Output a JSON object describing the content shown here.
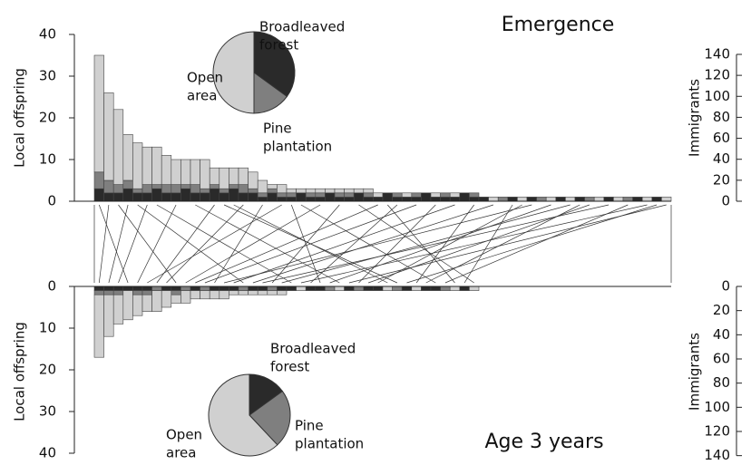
{
  "chart_data": [
    {
      "type": "bar",
      "stacked": true,
      "inverted": false,
      "title": "Emergence",
      "ylabel": "Local offspring",
      "y2label": "Immigrants",
      "ylim": [
        0,
        40
      ],
      "yticks": [
        0,
        10,
        20,
        30,
        40
      ],
      "y2lim": [
        0,
        159
      ],
      "y2ticks": [
        0,
        20,
        40,
        60,
        80,
        100,
        120,
        140
      ],
      "series": [
        {
          "name": "Broadleaved forest",
          "color": "#2a2a2a",
          "values": [
            3,
            2,
            2,
            3,
            2,
            2,
            3,
            2,
            2,
            3,
            2,
            2,
            3,
            2,
            3,
            2,
            2,
            1,
            2,
            1,
            1,
            2,
            1,
            1,
            2,
            1,
            1,
            2,
            1,
            1,
            2,
            1,
            1,
            1,
            2,
            1,
            1,
            1,
            2,
            1,
            1,
            0,
            0,
            1,
            0,
            1,
            0,
            0,
            1,
            0,
            1,
            0,
            0,
            1,
            0,
            0,
            1,
            0,
            1,
            0
          ]
        },
        {
          "name": "Pine plantation",
          "color": "#7f7f7f",
          "values": [
            4,
            3,
            2,
            2,
            1,
            2,
            1,
            2,
            2,
            1,
            2,
            1,
            1,
            1,
            1,
            2,
            1,
            1,
            1,
            1,
            1,
            0,
            1,
            1,
            0,
            1,
            1,
            0,
            1,
            0,
            0,
            1,
            0,
            1,
            0,
            0,
            1,
            0,
            0,
            1,
            0,
            0,
            1,
            0,
            0,
            0,
            1,
            0,
            0,
            0,
            0,
            1,
            0,
            0,
            0,
            1,
            0,
            0,
            0,
            0
          ]
        },
        {
          "name": "Open area",
          "color": "#d0d0d0",
          "values": [
            28,
            21,
            18,
            11,
            11,
            9,
            9,
            7,
            6,
            6,
            6,
            7,
            4,
            5,
            4,
            4,
            4,
            3,
            1,
            2,
            1,
            1,
            1,
            1,
            1,
            1,
            1,
            1,
            1,
            1,
            0,
            0,
            1,
            0,
            0,
            1,
            0,
            1,
            0,
            0,
            0,
            1,
            0,
            0,
            1,
            0,
            0,
            1,
            0,
            1,
            0,
            0,
            1,
            0,
            1,
            0,
            0,
            1,
            0,
            1
          ]
        }
      ]
    },
    {
      "type": "bar",
      "stacked": true,
      "inverted": true,
      "title": "Age 3 years",
      "ylabel": "Local offspring",
      "y2label": "Immigrants",
      "ylim": [
        0,
        40
      ],
      "yticks": [
        0,
        10,
        20,
        30,
        40
      ],
      "y2lim": [
        0,
        138
      ],
      "y2ticks": [
        0,
        20,
        40,
        60,
        80,
        100,
        120,
        140
      ],
      "series": [
        {
          "name": "Broadleaved forest",
          "color": "#2a2a2a",
          "values": [
            1,
            1,
            1,
            1,
            1,
            1,
            0,
            1,
            1,
            0,
            1,
            0,
            1,
            1,
            1,
            0,
            1,
            1,
            0,
            1,
            1,
            0,
            1,
            1,
            0,
            0,
            1,
            0,
            1,
            1,
            0,
            0,
            1,
            0,
            1,
            1,
            0,
            0,
            1,
            0
          ]
        },
        {
          "name": "Pine plantation",
          "color": "#7f7f7f",
          "values": [
            1,
            1,
            1,
            0,
            1,
            1,
            1,
            0,
            1,
            1,
            0,
            1,
            0,
            0,
            0,
            1,
            0,
            0,
            1,
            0,
            0,
            0,
            0,
            0,
            1,
            0,
            0,
            1,
            0,
            0,
            0,
            1,
            0,
            0,
            0,
            0,
            1,
            0,
            0,
            0
          ]
        },
        {
          "name": "Open area",
          "color": "#d0d0d0",
          "values": [
            15,
            10,
            7,
            7,
            5,
            4,
            5,
            4,
            2,
            3,
            2,
            2,
            2,
            2,
            1,
            1,
            1,
            1,
            1,
            1,
            0,
            1,
            0,
            0,
            0,
            1,
            0,
            0,
            0,
            0,
            1,
            0,
            0,
            1,
            0,
            0,
            0,
            1,
            0,
            1
          ]
        }
      ]
    },
    {
      "type": "pie",
      "labels": [
        [
          "Broadleaved",
          "forest"
        ],
        [
          "Pine",
          "plantation"
        ],
        [
          "Open",
          "area"
        ]
      ],
      "values": [
        35,
        15,
        50
      ],
      "colors": [
        "#2a2a2a",
        "#7f7f7f",
        "#d0d0d0"
      ]
    },
    {
      "type": "pie",
      "labels": [
        [
          "Broadleaved",
          "forest"
        ],
        [
          "Pine",
          "plantation"
        ],
        [
          "Open",
          "area"
        ]
      ],
      "values": [
        15,
        23,
        62
      ],
      "colors": [
        "#2a2a2a",
        "#7f7f7f",
        "#d0d0d0"
      ]
    }
  ],
  "links": {
    "from": [
      0,
      1,
      2,
      3,
      4,
      5,
      6,
      8,
      10,
      12,
      14,
      15,
      17,
      19,
      21,
      23,
      25,
      27,
      29,
      31,
      33,
      35,
      37,
      39,
      41,
      43,
      45,
      47,
      49,
      51,
      53,
      55,
      57,
      59,
      13,
      20,
      30,
      44,
      50,
      58
    ],
    "to": [
      3,
      0,
      8,
      1,
      15,
      2,
      20,
      4,
      25,
      6,
      30,
      7,
      12,
      5,
      35,
      9,
      18,
      39,
      10,
      22,
      11,
      27,
      14,
      33,
      16,
      38,
      13,
      24,
      19,
      28,
      17,
      36,
      21,
      26,
      31,
      23,
      37,
      29,
      34,
      32
    ]
  }
}
